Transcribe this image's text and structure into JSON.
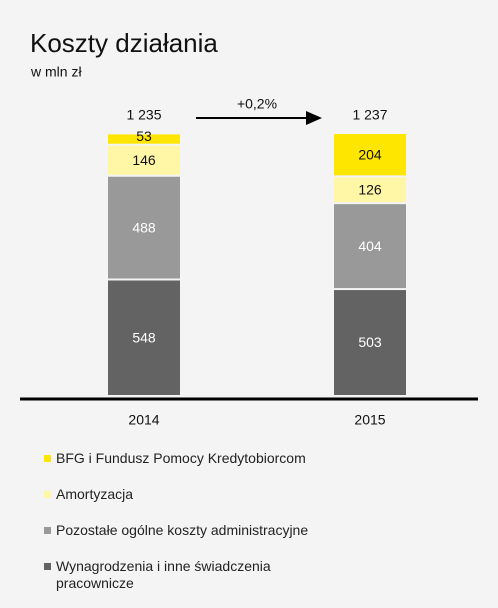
{
  "chart_data": {
    "type": "stacked_bar",
    "title": "Koszty działania",
    "subtitle": "w mln zł",
    "categories": [
      "2014",
      "2015"
    ],
    "series": [
      {
        "name": "Wynagrodzenia i inne świadczenia pracownicze",
        "color": "#636363",
        "values": [
          548,
          503
        ]
      },
      {
        "name": "Pozostałe ogólne koszty administracyjne",
        "color": "#999999",
        "values": [
          488,
          404
        ]
      },
      {
        "name": "Amortyzacja",
        "color": "#fff6a6",
        "values": [
          146,
          126
        ]
      },
      {
        "name": "BFG i Fundusz Pomocy Kredytobiorcom",
        "color": "#ffe600",
        "values": [
          53,
          204
        ]
      }
    ],
    "totals": [
      1235,
      1237
    ],
    "total_labels": [
      "1 235",
      "1 237"
    ],
    "annotation": "+0,2%"
  }
}
